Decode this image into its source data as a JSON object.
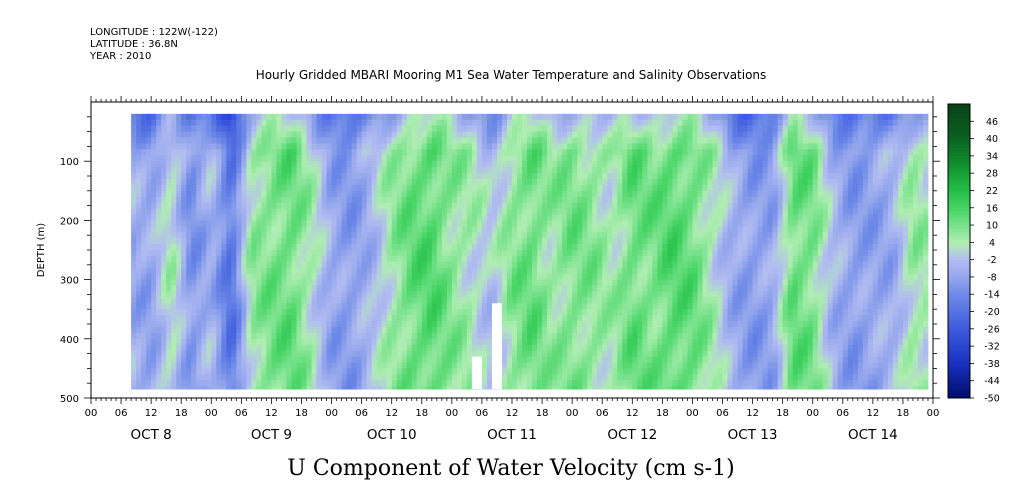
{
  "header": {
    "longitude": "LONGITUDE : 122W(-122)",
    "latitude": "LATITUDE : 36.8N",
    "year": "YEAR : 2010"
  },
  "chart_data": {
    "type": "heatmap",
    "title": "Hourly Gridded MBARI Mooring M1 Sea Water Temperature and Salinity Observations",
    "subtitle": "U Component of Water Velocity (cm s-1)",
    "ylabel": "DEPTH (m)",
    "xlabel": "",
    "x_hour_ticks": [
      "00",
      "06",
      "12",
      "18",
      "00",
      "06",
      "12",
      "18",
      "00",
      "06",
      "12",
      "18",
      "00",
      "06",
      "12",
      "18",
      "00",
      "06",
      "12",
      "18",
      "00",
      "06",
      "12",
      "18",
      "00",
      "06",
      "12",
      "18",
      "00"
    ],
    "day_labels": [
      "OCT  8",
      "OCT  9",
      "OCT 10",
      "OCT 11",
      "OCT 12",
      "OCT 13",
      "OCT 14"
    ],
    "xlim_hours": [
      0,
      168
    ],
    "data_start_hour": 8,
    "data_end_hour": 167,
    "y_ticks": [
      100,
      200,
      300,
      400,
      500
    ],
    "ylim": [
      500,
      0
    ],
    "data_depth_range": [
      20,
      485
    ],
    "colorbar": {
      "ticks": [
        46,
        40,
        34,
        28,
        22,
        16,
        10,
        4,
        -2,
        -8,
        -14,
        -20,
        -26,
        -32,
        -38,
        -44,
        -50
      ],
      "range": [
        -50,
        52
      ],
      "low_color": "#000c6a",
      "mid_low_color": "#aeb8f2",
      "mid_high_color": "#b2f0b2",
      "high_color": "#0a4a1c"
    },
    "column_profile_hours": [
      8,
      12,
      16,
      20,
      24,
      28,
      32,
      36,
      40,
      44,
      48,
      52,
      56,
      60,
      64,
      68,
      72,
      76,
      80,
      84,
      88,
      92,
      96,
      100,
      104,
      108,
      112,
      116,
      120,
      124,
      128,
      132,
      136,
      140,
      144,
      148,
      152,
      156,
      160,
      164,
      167
    ],
    "column_profile_values": [
      -6,
      -8,
      4,
      -12,
      -4,
      -20,
      6,
      10,
      12,
      4,
      -8,
      -10,
      -4,
      6,
      12,
      14,
      8,
      4,
      -2,
      8,
      12,
      6,
      10,
      8,
      4,
      12,
      10,
      14,
      12,
      4,
      -6,
      -10,
      -8,
      12,
      10,
      -4,
      -10,
      -8,
      -6,
      6,
      4
    ],
    "gaps": [
      {
        "hour_range": [
          80,
          82
        ],
        "depth_range": [
          340,
          485
        ]
      },
      {
        "hour_range": [
          76,
          78
        ],
        "depth_range": [
          430,
          485
        ]
      }
    ],
    "grid": false
  }
}
